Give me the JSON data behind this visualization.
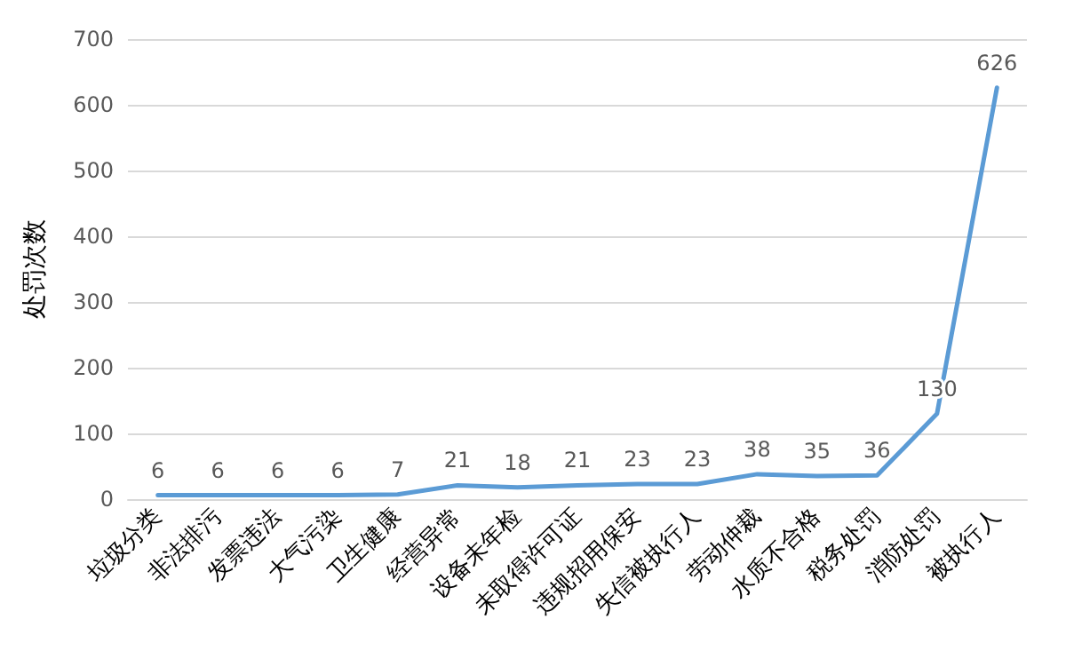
{
  "chart_data": {
    "type": "line",
    "ylabel": "处罚次数",
    "categories": [
      "垃圾分类",
      "非法排污",
      "发票违法",
      "大气污染",
      "卫生健康",
      "经营异常",
      "设备未年检",
      "未取得许可证",
      "违规招用保安",
      "失信被执行人",
      "劳动仲裁",
      "水质不合格",
      "税务处罚",
      "消防处罚",
      "被执行人"
    ],
    "series": [
      {
        "color": "#5b9bd5",
        "values": [
          6,
          6,
          6,
          6,
          7,
          21,
          18,
          21,
          23,
          23,
          38,
          35,
          36,
          130,
          626
        ]
      }
    ],
    "ylim": [
      0,
      700
    ],
    "yticks": [
      0,
      100,
      200,
      300,
      400,
      500,
      600,
      700
    ],
    "grid": "y",
    "data_labels": true,
    "marker": "none",
    "line_style": "solid"
  }
}
